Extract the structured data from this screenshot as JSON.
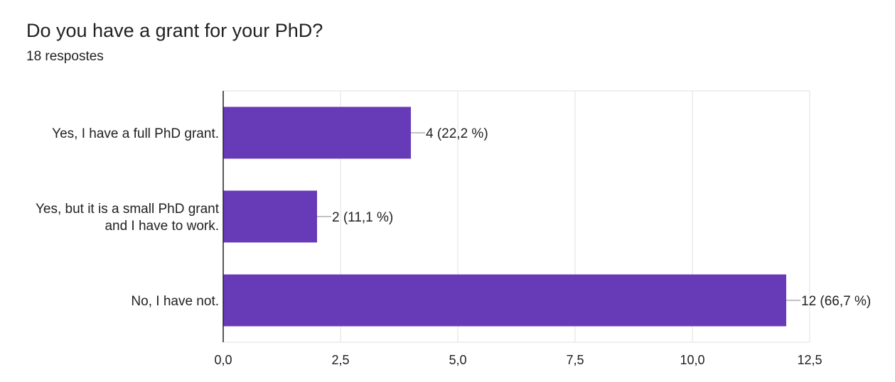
{
  "title": "Do you have a grant for your PhD?",
  "subtitle": "18 respostes",
  "colors": {
    "bar": "#673ab7",
    "grid": "#e0e0e0",
    "axis": "#202124",
    "leader": "#9e9e9e"
  },
  "chart_data": {
    "type": "bar",
    "orientation": "horizontal",
    "title": "Do you have a grant for your PhD?",
    "subtitle": "18 respostes",
    "categories": [
      [
        "Yes, I have a full PhD grant."
      ],
      [
        "Yes, but it is a small PhD grant",
        "and I have to work."
      ],
      [
        "No, I have not."
      ]
    ],
    "values": [
      4,
      2,
      12
    ],
    "data_labels": [
      "4 (22,2 %)",
      "2 (11,1 %)",
      "12 (66,7 %)"
    ],
    "xlim": [
      0,
      12.5
    ],
    "x_ticks": [
      0,
      2.5,
      5,
      7.5,
      10,
      12.5
    ],
    "x_tick_labels": [
      "0,0",
      "2,5",
      "5,0",
      "7,5",
      "10,0",
      "12,5"
    ],
    "grid": true,
    "legend": "none"
  }
}
